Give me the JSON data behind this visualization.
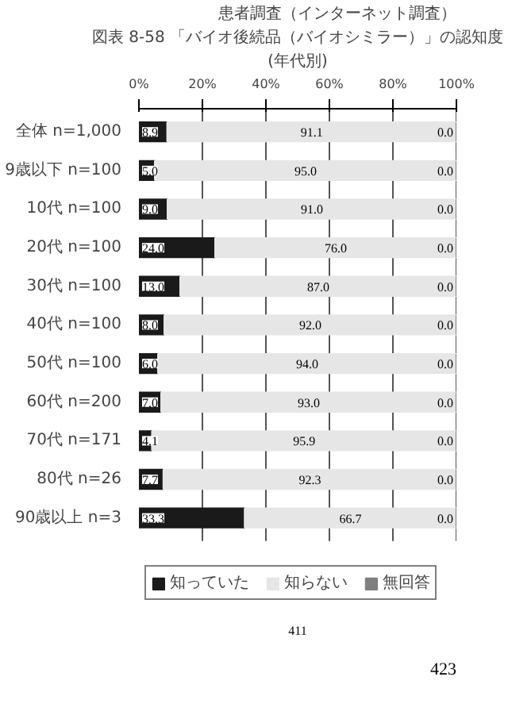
{
  "chart_data": {
    "type": "bar",
    "orientation": "horizontal",
    "stacked": true,
    "title": "図表 8-58 「バイオ後続品（バイオシミラー）」の認知度",
    "subtitle": "(年代別)",
    "annotations": [
      "患者調査（インターネット調査）",
      "411",
      "423"
    ],
    "categories": [
      "全体 n=1,000",
      "9歳以下 n=100",
      "10代 n=100",
      "20代 n=100",
      "30代 n=100",
      "40代 n=100",
      "50代 n=100",
      "60代 n=200",
      "70代 n=171",
      "80代 n=26",
      "90歳以上 n=3"
    ],
    "series": [
      {
        "name": "知っていた",
        "color": "#1a1a1a",
        "values": [
          8.9,
          5.0,
          9.0,
          24.0,
          13.0,
          8.0,
          6.0,
          7.0,
          4.1,
          7.7,
          33.3
        ],
        "value_labels": [
          "8.9",
          "5.0",
          "9.0",
          "24.0",
          "13.0",
          "8.0",
          "6.0",
          "7.0",
          "4.1",
          "7.7",
          "33.3"
        ]
      },
      {
        "name": "知らない",
        "color": "#e6e6e6",
        "values": [
          91.1,
          95.0,
          91.0,
          76.0,
          87.0,
          92.0,
          94.0,
          93.0,
          95.9,
          92.3,
          66.7
        ],
        "value_labels": [
          "91.1",
          "95.0",
          "91.0",
          "76.0",
          "87.0",
          "92.0",
          "94.0",
          "93.0",
          "95.9",
          "92.3",
          "66.7"
        ]
      },
      {
        "name": "無回答",
        "color": "#7f7f7f",
        "values": [
          0.0,
          0.0,
          0.0,
          0.0,
          0.0,
          0.0,
          0.0,
          0.0,
          0.0,
          0.0,
          0.0
        ],
        "value_labels": [
          "0.0",
          "0.0",
          "0.0",
          "0.0",
          "0.0",
          "0.0",
          "0.0",
          "0.0",
          "0.0",
          "0.0",
          "0.0"
        ]
      }
    ],
    "xlim": [
      0,
      100
    ],
    "xticks": [
      {
        "value": 0,
        "label": "0%"
      },
      {
        "value": 20,
        "label": "20%"
      },
      {
        "value": 40,
        "label": "40%"
      },
      {
        "value": 60,
        "label": "60%"
      },
      {
        "value": 80,
        "label": "80%"
      },
      {
        "value": 100,
        "label": "100%"
      }
    ],
    "grid": "x",
    "legend": "bottom"
  }
}
